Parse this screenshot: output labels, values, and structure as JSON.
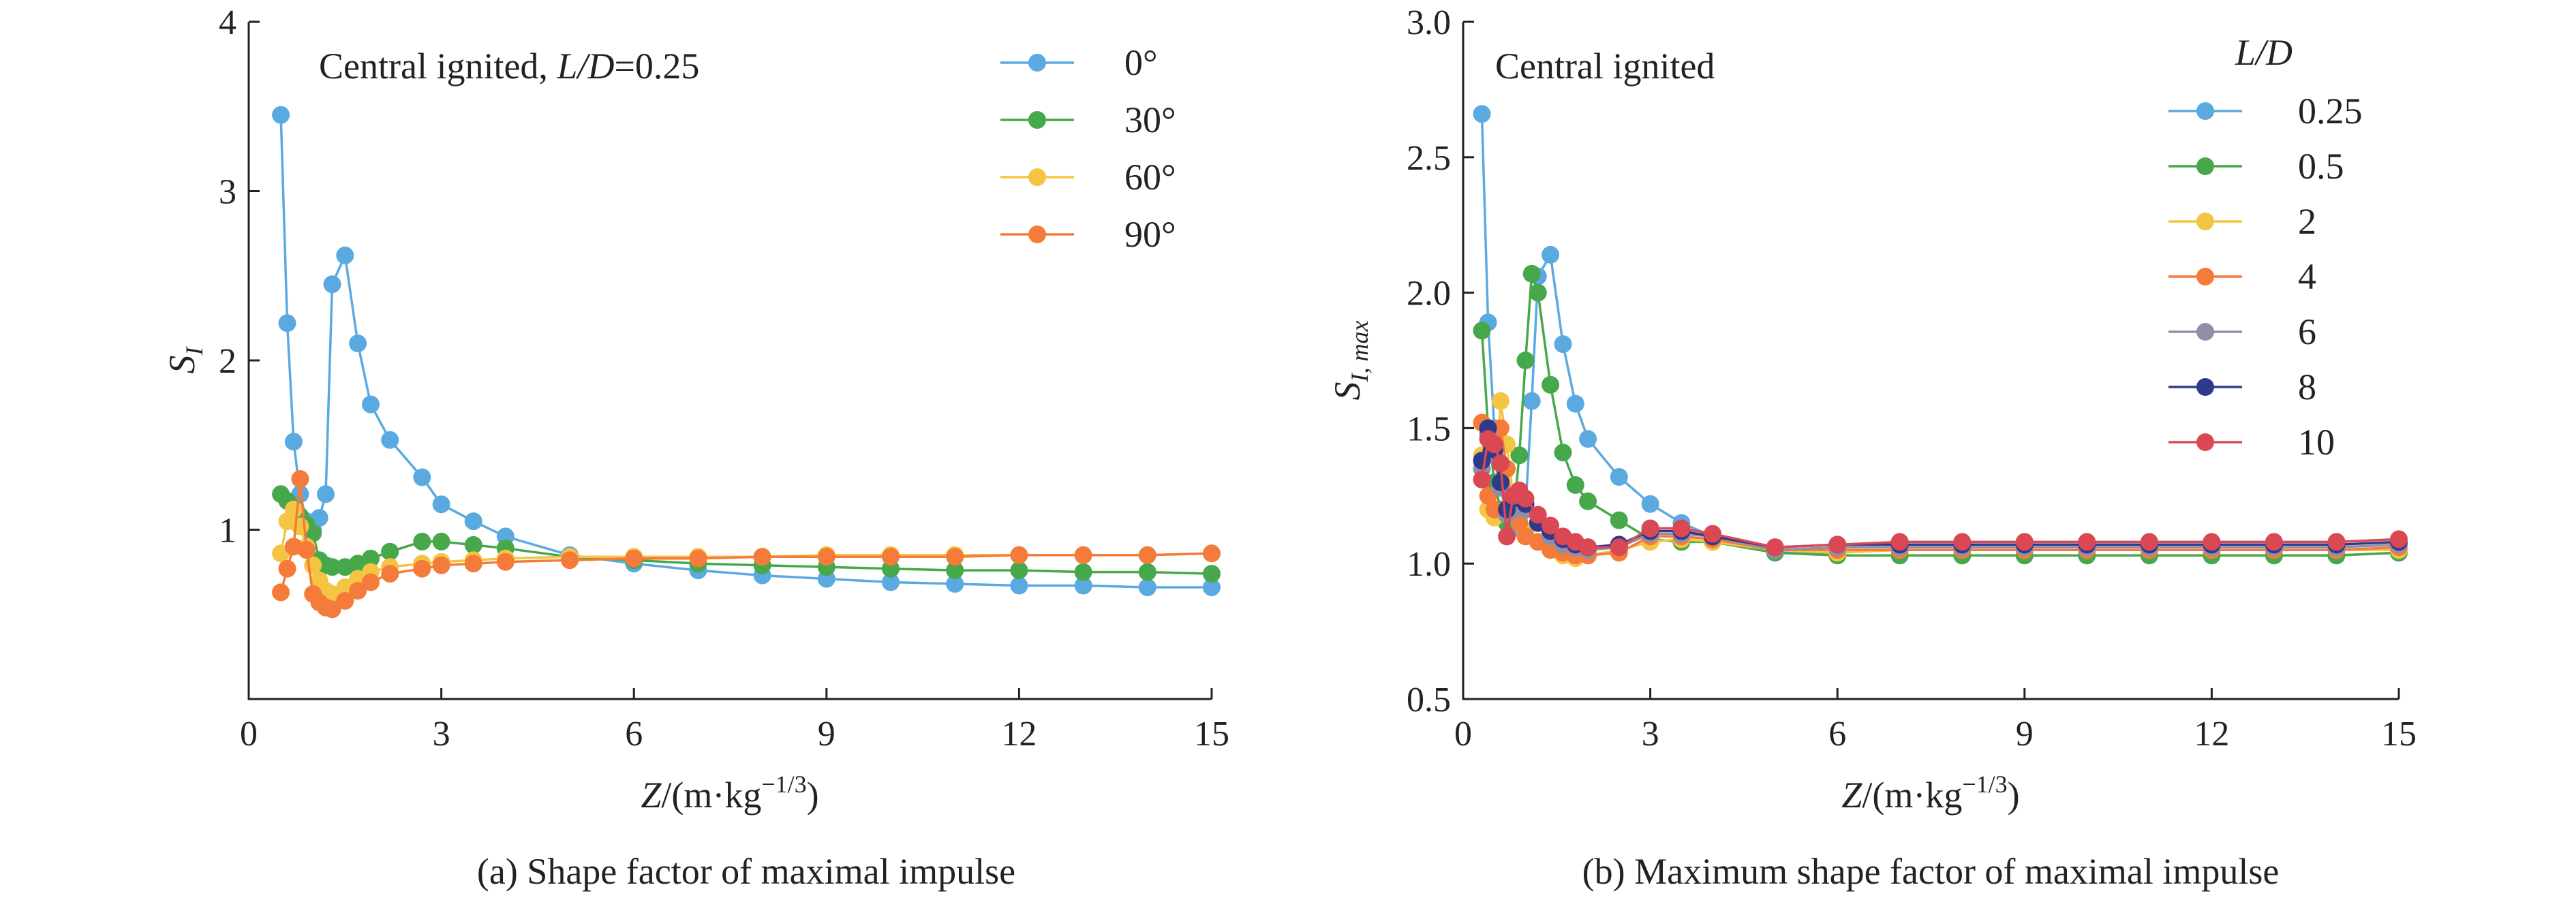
{
  "colors": {
    "blue": "#5aa9e0",
    "green": "#46a84a",
    "yellow": "#f4c542",
    "orange": "#f47b3a",
    "grey": "#8f8faa",
    "navy": "#2e3a8c",
    "red": "#d94853"
  },
  "chart_data": [
    {
      "type": "line",
      "caption": "(a) Shape factor of maximal impulse",
      "annotation": {
        "prefix": "Central ignited, ",
        "italic": "L/D",
        "suffix": "=0.25"
      },
      "xlabel": {
        "italic": "Z",
        "text": "/(m·kg",
        "sup": "−1/3",
        "close": ")"
      },
      "ylabel": {
        "main": "S",
        "sub": "I"
      },
      "xlim": [
        0,
        15
      ],
      "ylim": [
        0,
        4
      ],
      "xticks": [
        0,
        3,
        6,
        9,
        12,
        15
      ],
      "yticks": [
        1,
        2,
        3,
        4
      ],
      "legend_position": "top-right",
      "series": [
        {
          "name": "0°",
          "color": "#5aa9e0",
          "x": [
            0.5,
            0.6,
            0.7,
            0.8,
            0.9,
            1.0,
            1.1,
            1.2,
            1.3,
            1.5,
            1.7,
            1.9,
            2.2,
            2.7,
            3.0,
            3.5,
            4.0,
            5.0,
            6.0,
            7.0,
            8.0,
            9.0,
            10.0,
            11.0,
            12.0,
            13.0,
            14.0,
            15.0
          ],
          "y": [
            3.45,
            2.22,
            1.52,
            1.21,
            1.05,
            1.0,
            1.07,
            1.21,
            2.45,
            2.62,
            2.1,
            1.74,
            1.53,
            1.31,
            1.15,
            1.05,
            0.96,
            0.85,
            0.8,
            0.76,
            0.73,
            0.71,
            0.69,
            0.68,
            0.67,
            0.67,
            0.66,
            0.66
          ]
        },
        {
          "name": "30°",
          "color": "#46a84a",
          "x": [
            0.5,
            0.6,
            0.7,
            0.8,
            0.9,
            1.0,
            1.1,
            1.2,
            1.3,
            1.5,
            1.7,
            1.9,
            2.2,
            2.7,
            3.0,
            3.5,
            4.0,
            5.0,
            6.0,
            7.0,
            8.0,
            9.0,
            10.0,
            11.0,
            12.0,
            13.0,
            14.0,
            15.0
          ],
          "y": [
            1.21,
            1.17,
            1.13,
            1.08,
            1.03,
            0.98,
            0.82,
            0.79,
            0.78,
            0.78,
            0.8,
            0.83,
            0.87,
            0.93,
            0.93,
            0.91,
            0.89,
            0.84,
            0.82,
            0.8,
            0.79,
            0.78,
            0.77,
            0.76,
            0.76,
            0.75,
            0.75,
            0.74
          ]
        },
        {
          "name": "60°",
          "color": "#f4c542",
          "x": [
            0.5,
            0.6,
            0.7,
            0.8,
            0.9,
            1.0,
            1.1,
            1.2,
            1.3,
            1.5,
            1.7,
            1.9,
            2.2,
            2.7,
            3.0,
            3.5,
            4.0,
            5.0,
            6.0,
            7.0,
            8.0,
            9.0,
            10.0,
            11.0,
            12.0,
            13.0,
            14.0,
            15.0
          ],
          "y": [
            0.86,
            1.05,
            1.12,
            1.02,
            0.9,
            0.79,
            0.7,
            0.64,
            0.62,
            0.66,
            0.71,
            0.75,
            0.78,
            0.8,
            0.81,
            0.82,
            0.83,
            0.84,
            0.84,
            0.84,
            0.84,
            0.85,
            0.85,
            0.85,
            0.85,
            0.85,
            0.85,
            0.86
          ]
        },
        {
          "name": "90°",
          "color": "#f47b3a",
          "x": [
            0.5,
            0.6,
            0.7,
            0.8,
            0.9,
            1.0,
            1.1,
            1.2,
            1.3,
            1.5,
            1.7,
            1.9,
            2.2,
            2.7,
            3.0,
            3.5,
            4.0,
            5.0,
            6.0,
            7.0,
            8.0,
            9.0,
            10.0,
            11.0,
            12.0,
            13.0,
            14.0,
            15.0
          ],
          "y": [
            0.63,
            0.77,
            0.9,
            1.3,
            0.88,
            0.62,
            0.57,
            0.54,
            0.53,
            0.58,
            0.64,
            0.69,
            0.74,
            0.77,
            0.79,
            0.8,
            0.81,
            0.82,
            0.83,
            0.83,
            0.84,
            0.84,
            0.84,
            0.84,
            0.85,
            0.85,
            0.85,
            0.86
          ]
        }
      ]
    },
    {
      "type": "line",
      "caption": "(b) Maximum shape factor of maximal impulse",
      "annotation": {
        "prefix": "Central ignited",
        "italic": "",
        "suffix": ""
      },
      "legend_title": "L/D",
      "xlabel": {
        "italic": "Z",
        "text": "/(m·kg",
        "sup": "−1/3",
        "close": ")"
      },
      "ylabel": {
        "main": "S",
        "sub": "I, max"
      },
      "xlim": [
        0,
        15
      ],
      "ylim": [
        0.5,
        3.0
      ],
      "xticks": [
        0,
        3,
        6,
        9,
        12,
        15
      ],
      "yticks": [
        "0.5",
        "1.0",
        "1.5",
        "2.0",
        "2.5",
        "3.0"
      ],
      "legend_position": "top-right",
      "series": [
        {
          "name": "0.25",
          "color": "#5aa9e0",
          "x": [
            0.3,
            0.4,
            0.5,
            0.6,
            0.7,
            0.8,
            0.9,
            1.0,
            1.1,
            1.2,
            1.4,
            1.6,
            1.8,
            2.0,
            2.5,
            3.0,
            3.5,
            4.0,
            5.0,
            6.0,
            7.0,
            8.0,
            9.0,
            10.0,
            11.0,
            12.0,
            13.0,
            14.0,
            15.0
          ],
          "y": [
            2.66,
            1.89,
            1.5,
            1.3,
            1.2,
            1.15,
            1.13,
            1.2,
            1.6,
            2.06,
            2.14,
            1.81,
            1.59,
            1.46,
            1.32,
            1.22,
            1.15,
            1.1,
            1.05,
            1.03,
            1.03,
            1.03,
            1.03,
            1.03,
            1.03,
            1.03,
            1.03,
            1.03,
            1.04
          ]
        },
        {
          "name": "0.5",
          "color": "#46a84a",
          "x": [
            0.3,
            0.4,
            0.5,
            0.6,
            0.7,
            0.8,
            0.9,
            1.0,
            1.1,
            1.2,
            1.4,
            1.6,
            1.8,
            2.0,
            2.5,
            3.0,
            3.5,
            4.0,
            5.0,
            6.0,
            7.0,
            8.0,
            9.0,
            10.0,
            11.0,
            12.0,
            13.0,
            14.0,
            15.0
          ],
          "y": [
            1.86,
            1.5,
            1.3,
            1.2,
            1.15,
            1.16,
            1.4,
            1.75,
            2.07,
            2.0,
            1.66,
            1.41,
            1.29,
            1.23,
            1.16,
            1.09,
            1.08,
            1.08,
            1.04,
            1.03,
            1.03,
            1.03,
            1.03,
            1.03,
            1.03,
            1.03,
            1.03,
            1.03,
            1.04
          ]
        },
        {
          "name": "2",
          "color": "#f4c542",
          "x": [
            0.3,
            0.4,
            0.5,
            0.6,
            0.7,
            0.8,
            0.9,
            1.0,
            1.2,
            1.4,
            1.6,
            1.8,
            2.0,
            2.5,
            3.0,
            3.5,
            4.0,
            5.0,
            6.0,
            7.0,
            8.0,
            9.0,
            10.0,
            11.0,
            12.0,
            13.0,
            14.0,
            15.0
          ],
          "y": [
            1.4,
            1.2,
            1.17,
            1.6,
            1.44,
            1.25,
            1.17,
            1.12,
            1.08,
            1.05,
            1.03,
            1.02,
            1.03,
            1.05,
            1.08,
            1.09,
            1.08,
            1.05,
            1.04,
            1.05,
            1.05,
            1.05,
            1.05,
            1.05,
            1.05,
            1.05,
            1.05,
            1.05
          ]
        },
        {
          "name": "4",
          "color": "#f47b3a",
          "x": [
            0.3,
            0.4,
            0.5,
            0.6,
            0.7,
            0.8,
            0.9,
            1.0,
            1.2,
            1.4,
            1.6,
            1.8,
            2.0,
            2.5,
            3.0,
            3.5,
            4.0,
            5.0,
            6.0,
            7.0,
            8.0,
            9.0,
            10.0,
            11.0,
            12.0,
            13.0,
            14.0,
            15.0
          ],
          "y": [
            1.52,
            1.25,
            1.2,
            1.5,
            1.35,
            1.2,
            1.15,
            1.1,
            1.08,
            1.05,
            1.04,
            1.03,
            1.03,
            1.04,
            1.1,
            1.1,
            1.09,
            1.05,
            1.05,
            1.05,
            1.05,
            1.05,
            1.05,
            1.05,
            1.05,
            1.05,
            1.05,
            1.06
          ]
        },
        {
          "name": "6",
          "color": "#8f8faa",
          "x": [
            0.3,
            0.4,
            0.5,
            0.6,
            0.7,
            0.8,
            0.9,
            1.0,
            1.2,
            1.4,
            1.6,
            1.8,
            2.0,
            2.5,
            3.0,
            3.5,
            4.0,
            5.0,
            6.0,
            7.0,
            8.0,
            9.0,
            10.0,
            11.0,
            12.0,
            13.0,
            14.0,
            15.0
          ],
          "y": [
            1.35,
            1.48,
            1.4,
            1.28,
            1.18,
            1.2,
            1.22,
            1.2,
            1.15,
            1.1,
            1.07,
            1.06,
            1.05,
            1.06,
            1.11,
            1.11,
            1.1,
            1.05,
            1.06,
            1.06,
            1.06,
            1.06,
            1.06,
            1.06,
            1.06,
            1.06,
            1.06,
            1.07
          ]
        },
        {
          "name": "8",
          "color": "#2e3a8c",
          "x": [
            0.3,
            0.4,
            0.5,
            0.6,
            0.7,
            0.8,
            0.9,
            1.0,
            1.2,
            1.4,
            1.6,
            1.8,
            2.0,
            2.5,
            3.0,
            3.5,
            4.0,
            5.0,
            6.0,
            7.0,
            8.0,
            9.0,
            10.0,
            11.0,
            12.0,
            13.0,
            14.0,
            15.0
          ],
          "y": [
            1.38,
            1.5,
            1.42,
            1.3,
            1.2,
            1.24,
            1.26,
            1.22,
            1.15,
            1.12,
            1.09,
            1.07,
            1.06,
            1.07,
            1.12,
            1.12,
            1.1,
            1.06,
            1.07,
            1.07,
            1.07,
            1.07,
            1.07,
            1.07,
            1.07,
            1.07,
            1.07,
            1.08
          ]
        },
        {
          "name": "10",
          "color": "#d94853",
          "x": [
            0.3,
            0.4,
            0.5,
            0.6,
            0.7,
            0.8,
            0.9,
            1.0,
            1.2,
            1.4,
            1.6,
            1.8,
            2.0,
            2.5,
            3.0,
            3.5,
            4.0,
            5.0,
            6.0,
            7.0,
            8.0,
            9.0,
            10.0,
            11.0,
            12.0,
            13.0,
            14.0,
            15.0
          ],
          "y": [
            1.31,
            1.46,
            1.44,
            1.37,
            1.1,
            1.25,
            1.27,
            1.24,
            1.18,
            1.14,
            1.1,
            1.08,
            1.06,
            1.06,
            1.13,
            1.13,
            1.11,
            1.06,
            1.07,
            1.08,
            1.08,
            1.08,
            1.08,
            1.08,
            1.08,
            1.08,
            1.08,
            1.09
          ]
        }
      ]
    }
  ]
}
